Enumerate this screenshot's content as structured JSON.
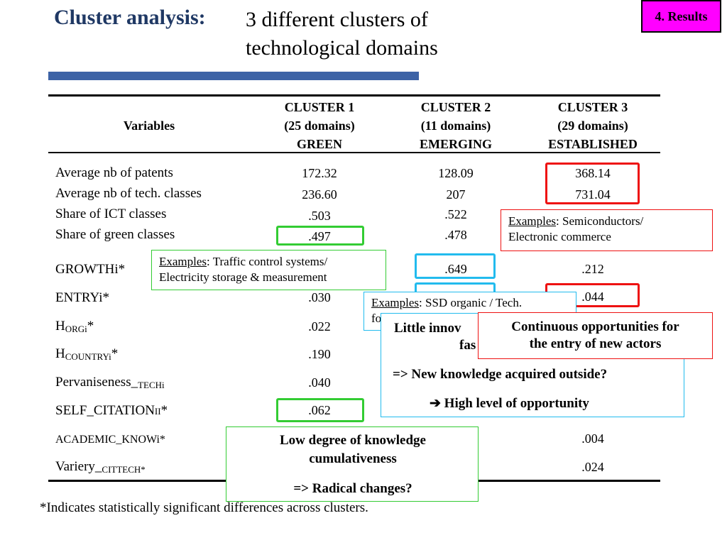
{
  "title": {
    "bold": "Cluster analysis:",
    "line1": "3 different clusters of",
    "line2": "technological domains"
  },
  "badge": "4. Results",
  "colors": {
    "title": "#1f3864",
    "rule": "#3d63a6",
    "badge": "#ff00ff",
    "green": "#33cc33",
    "red": "#ee1111",
    "cyan": "#22bbee"
  },
  "table": {
    "variables_header": "Variables",
    "clusters": [
      {
        "name": "CLUSTER 1",
        "size": "(25 domains)",
        "label": "GREEN"
      },
      {
        "name": "CLUSTER 2",
        "size": "(11 domains)",
        "label": "EMERGING"
      },
      {
        "name": "CLUSTER 3",
        "size": "(29 domains)",
        "label": "ESTABLISHED"
      }
    ],
    "rows": [
      {
        "label": "Average nb of patents",
        "c1": "172.32",
        "c2": "128.09",
        "c3": "368.14"
      },
      {
        "label": "Average nb of tech. classes",
        "c1": "236.60",
        "c2": "207",
        "c3": "731.04"
      },
      {
        "label": "Share of ICT classes",
        "c1": ".503",
        "c2": ".522",
        "c3": ""
      },
      {
        "label": "Share of green classes",
        "c1": ".497",
        "c2": ".478",
        "c3": ""
      },
      {
        "label": "GROWTHi*",
        "c1": "",
        "c2": ".649",
        "c3": ".212"
      },
      {
        "label": "ENTRYi*",
        "c1": ".030",
        "c2": "",
        "c3": ".044"
      },
      {
        "label_main": "H",
        "label_sub": "ORGi",
        "label_tail": "*",
        "c1": ".022"
      },
      {
        "label_main": "H",
        "label_sub": "COUNTRYi",
        "label_tail": "*",
        "c1": ".190"
      },
      {
        "label_main": "Pervaniseness_",
        "label_sub": "TECHi",
        "label_tail": "",
        "c1": ".040"
      },
      {
        "label_main": "SELF_CITATIONi",
        "label_tail": "i*",
        "c1": ".062"
      },
      {
        "label_main": "ACADEMIC_KNOWi",
        "label_tail": "*",
        "c3": ".004"
      },
      {
        "label_main": "Variery_",
        "label_sub": "CITTECH*",
        "label_tail": "",
        "c3": ".024"
      }
    ]
  },
  "callouts": {
    "semiconductors": {
      "prefix": "Examples",
      "text": ": Semiconductors/",
      "line2": "Electronic commerce"
    },
    "traffic": {
      "prefix": "Examples",
      "text": ": Traffic control systems/",
      "line2": "Electricity storage & measurement"
    },
    "ssd": {
      "prefix": "Examples",
      "text": ": SSD organic / Tech.",
      "line2": "fo"
    },
    "little": {
      "line1": "Little innov",
      "line2": "fas",
      "line3": "=> New knowledge acquired outside?",
      "line4": "High level of opportunity",
      "arrow": "➔"
    },
    "continuous": {
      "line1": "Continuous opportunities for",
      "line2": "the entry of new actors"
    },
    "low": {
      "line1": "Low degree of knowledge",
      "line2": "cumulativeness",
      "line3": "=> Radical changes?"
    }
  },
  "footnote": "*Indicates statistically significant differences across clusters."
}
